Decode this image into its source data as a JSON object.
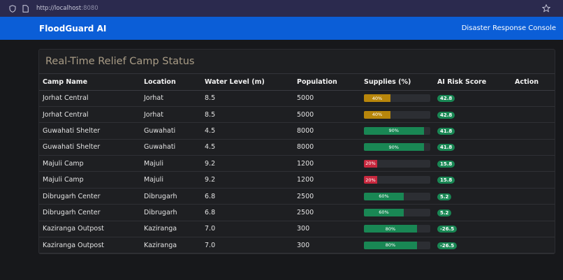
{
  "browser": {
    "url_host": "http://localhost",
    "url_port": ":8080"
  },
  "header": {
    "brand": "FloodGuard AI",
    "console": "Disaster Response Console"
  },
  "card": {
    "title": "Real-Time Relief Camp Status"
  },
  "table": {
    "columns": [
      "Camp Name",
      "Location",
      "Water Level (m)",
      "Population",
      "Supplies (%)",
      "AI Risk Score",
      "Action"
    ],
    "rows": [
      {
        "camp": "Jorhat Central",
        "location": "Jorhat",
        "water": "8.5",
        "population": "5000",
        "supplies": 40,
        "supplies_label": "40%",
        "bar_color": "#b8860b",
        "risk": "42.8"
      },
      {
        "camp": "Jorhat Central",
        "location": "Jorhat",
        "water": "8.5",
        "population": "5000",
        "supplies": 40,
        "supplies_label": "40%",
        "bar_color": "#b8860b",
        "risk": "42.8"
      },
      {
        "camp": "Guwahati Shelter",
        "location": "Guwahati",
        "water": "4.5",
        "population": "8000",
        "supplies": 90,
        "supplies_label": "90%",
        "bar_color": "#198754",
        "risk": "41.8"
      },
      {
        "camp": "Guwahati Shelter",
        "location": "Guwahati",
        "water": "4.5",
        "population": "8000",
        "supplies": 90,
        "supplies_label": "90%",
        "bar_color": "#198754",
        "risk": "41.8"
      },
      {
        "camp": "Majuli Camp",
        "location": "Majuli",
        "water": "9.2",
        "population": "1200",
        "supplies": 20,
        "supplies_label": "20%",
        "bar_color": "#c8283e",
        "risk": "15.8"
      },
      {
        "camp": "Majuli Camp",
        "location": "Majuli",
        "water": "9.2",
        "population": "1200",
        "supplies": 20,
        "supplies_label": "20%",
        "bar_color": "#c8283e",
        "risk": "15.8"
      },
      {
        "camp": "Dibrugarh Center",
        "location": "Dibrugarh",
        "water": "6.8",
        "population": "2500",
        "supplies": 60,
        "supplies_label": "60%",
        "bar_color": "#198754",
        "risk": "5.2"
      },
      {
        "camp": "Dibrugarh Center",
        "location": "Dibrugarh",
        "water": "6.8",
        "population": "2500",
        "supplies": 60,
        "supplies_label": "60%",
        "bar_color": "#198754",
        "risk": "5.2"
      },
      {
        "camp": "Kaziranga Outpost",
        "location": "Kaziranga",
        "water": "7.0",
        "population": "300",
        "supplies": 80,
        "supplies_label": "80%",
        "bar_color": "#198754",
        "risk": "-26.5"
      },
      {
        "camp": "Kaziranga Outpost",
        "location": "Kaziranga",
        "water": "7.0",
        "population": "300",
        "supplies": 80,
        "supplies_label": "80%",
        "bar_color": "#198754",
        "risk": "-26.5"
      }
    ]
  }
}
